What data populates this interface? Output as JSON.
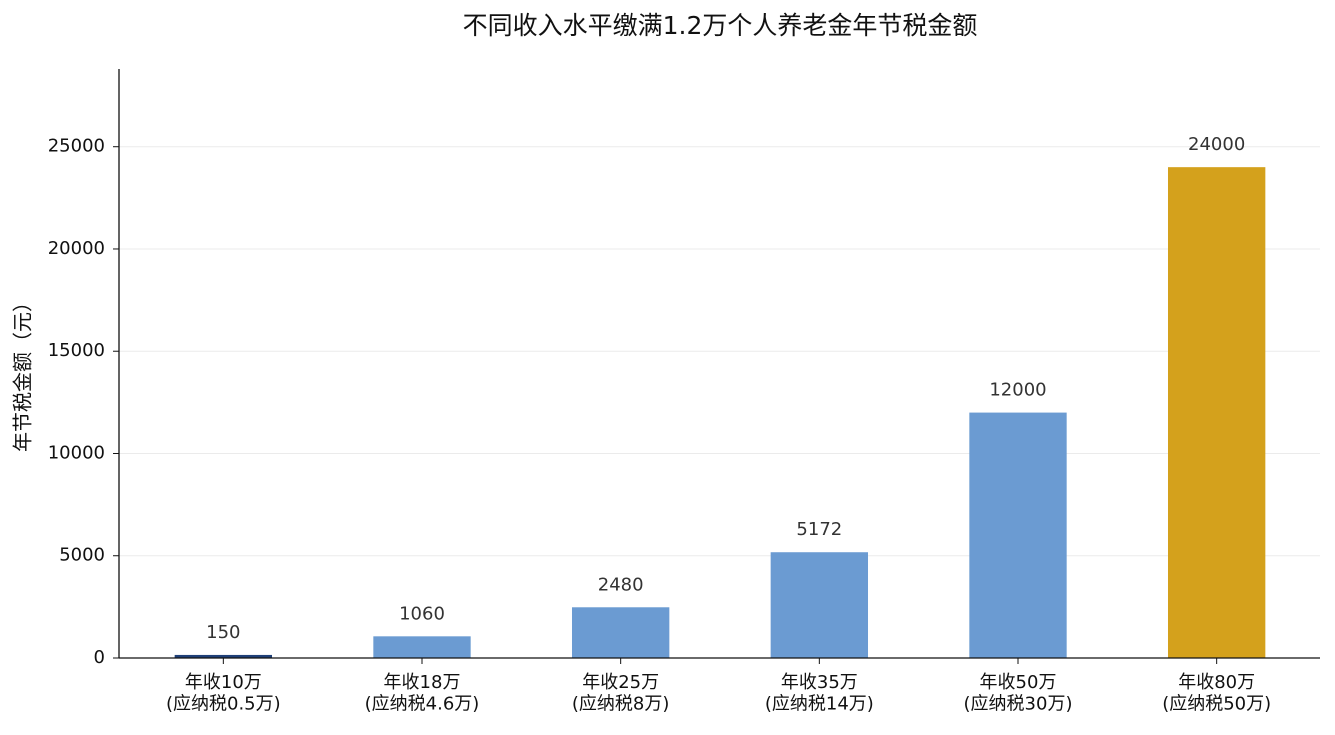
{
  "chart_data": {
    "type": "bar",
    "title": "不同收入水平缴满1.2万个人养老金年节税金额",
    "y_label": "年节税金额（元）",
    "categories": [
      "年收10万\n(应纳税0.5万)",
      "年收18万\n(应纳税4.6万)",
      "年收25万\n(应纳税8万)",
      "年收35万\n(应纳税14万)",
      "年收50万\n(应纳税30万)",
      "年收80万\n(应纳税50万)"
    ],
    "values": [
      150,
      1060,
      2480,
      5172,
      12000,
      24000
    ],
    "colors": [
      "#1f3f77",
      "#6b9bd2",
      "#6b9bd2",
      "#6b9bd2",
      "#6b9bd2",
      "#d4a11c"
    ],
    "ylim": [
      0,
      28800
    ],
    "yticks": [
      0,
      5000,
      10000,
      15000,
      20000,
      25000
    ],
    "grid": true
  }
}
